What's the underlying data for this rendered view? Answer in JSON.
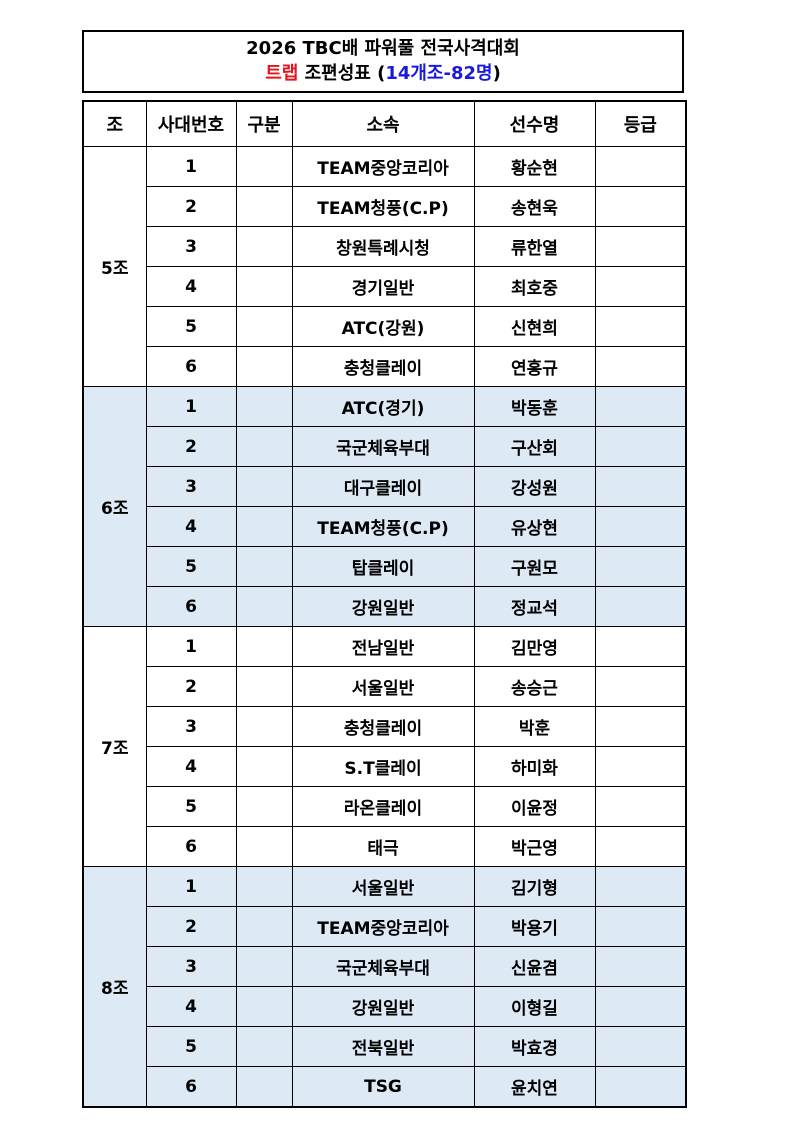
{
  "title": {
    "line1": "2026 TBC배 파워풀 전국사격대회",
    "event": "트랩",
    "mid": " 조편성표 (",
    "count": "14개조-82명",
    "close": ")"
  },
  "colors": {
    "shade": "#dde9f5",
    "event_red": "#e8141c",
    "count_blue": "#1a1adc"
  },
  "headers": [
    "조",
    "사대번호",
    "구분",
    "소속",
    "선수명",
    "등급"
  ],
  "groups": [
    {
      "name": "5조",
      "shaded": false,
      "rows": [
        {
          "no": "1",
          "team": "TEAM중앙코리아",
          "player": "황순현"
        },
        {
          "no": "2",
          "team": "TEAM청풍(C.P)",
          "player": "송현욱"
        },
        {
          "no": "3",
          "team": "창원특례시청",
          "player": "류한열"
        },
        {
          "no": "4",
          "team": "경기일반",
          "player": "최호중"
        },
        {
          "no": "5",
          "team": "ATC(강원)",
          "player": "신현희"
        },
        {
          "no": "6",
          "team": "충청클레이",
          "player": "연홍규"
        }
      ]
    },
    {
      "name": "6조",
      "shaded": true,
      "rows": [
        {
          "no": "1",
          "team": "ATC(경기)",
          "player": "박동훈"
        },
        {
          "no": "2",
          "team": "국군체육부대",
          "player": "구산회"
        },
        {
          "no": "3",
          "team": "대구클레이",
          "player": "강성원"
        },
        {
          "no": "4",
          "team": "TEAM청풍(C.P)",
          "player": "유상현"
        },
        {
          "no": "5",
          "team": "탑클레이",
          "player": "구원모"
        },
        {
          "no": "6",
          "team": "강원일반",
          "player": "정교석"
        }
      ]
    },
    {
      "name": "7조",
      "shaded": false,
      "rows": [
        {
          "no": "1",
          "team": "전남일반",
          "player": "김만영"
        },
        {
          "no": "2",
          "team": "서울일반",
          "player": "송승근"
        },
        {
          "no": "3",
          "team": "충청클레이",
          "player": "박훈"
        },
        {
          "no": "4",
          "team": "S.T클레이",
          "player": "하미화"
        },
        {
          "no": "5",
          "team": "라온클레이",
          "player": "이윤정"
        },
        {
          "no": "6",
          "team": "태극",
          "player": "박근영"
        }
      ]
    },
    {
      "name": "8조",
      "shaded": true,
      "rows": [
        {
          "no": "1",
          "team": "서울일반",
          "player": "김기형"
        },
        {
          "no": "2",
          "team": "TEAM중앙코리아",
          "player": "박용기"
        },
        {
          "no": "3",
          "team": "국군체육부대",
          "player": "신윤겸"
        },
        {
          "no": "4",
          "team": "강원일반",
          "player": "이형길"
        },
        {
          "no": "5",
          "team": "전북일반",
          "player": "박효경"
        },
        {
          "no": "6",
          "team": "TSG",
          "player": "윤치연"
        }
      ]
    }
  ]
}
